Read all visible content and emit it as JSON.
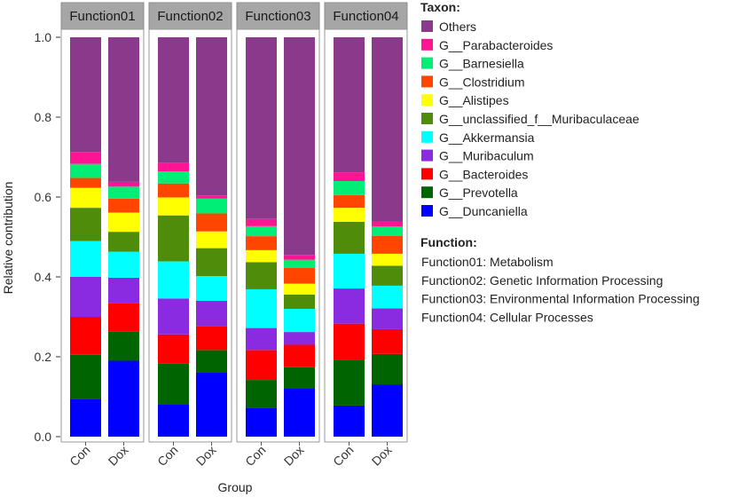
{
  "chart_data": {
    "type": "bar",
    "stacked": true,
    "ylabel": "Relative contribution",
    "xlabel": "Group",
    "ylim": [
      0,
      1
    ],
    "yticks": [
      "0.0",
      "0.2",
      "0.4",
      "0.6",
      "0.8",
      "1.0"
    ],
    "facets": [
      "Function01",
      "Function02",
      "Function03",
      "Function04"
    ],
    "categories": [
      "Con",
      "Dox"
    ],
    "legend_title": "Taxon:",
    "series": [
      {
        "name": "G__Duncaniella",
        "color": "#0000ff",
        "values": {
          "Function01": [
            0.095,
            0.19
          ],
          "Function02": [
            0.08,
            0.16
          ],
          "Function03": [
            0.072,
            0.12
          ],
          "Function04": [
            0.078,
            0.13
          ]
        }
      },
      {
        "name": "G__Prevotella",
        "color": "#006400",
        "values": {
          "Function01": [
            0.11,
            0.073
          ],
          "Function02": [
            0.103,
            0.057
          ],
          "Function03": [
            0.07,
            0.054
          ],
          "Function04": [
            0.115,
            0.077
          ]
        }
      },
      {
        "name": "G__Bacteroides",
        "color": "#ff0000",
        "values": {
          "Function01": [
            0.095,
            0.072
          ],
          "Function02": [
            0.073,
            0.06
          ],
          "Function03": [
            0.075,
            0.056
          ],
          "Function04": [
            0.09,
            0.062
          ]
        }
      },
      {
        "name": "G__Muribaculum",
        "color": "#8a2be2",
        "values": {
          "Function01": [
            0.1,
            0.063
          ],
          "Function02": [
            0.09,
            0.063
          ],
          "Function03": [
            0.055,
            0.032
          ],
          "Function04": [
            0.088,
            0.052
          ]
        }
      },
      {
        "name": "G__Akkermansia",
        "color": "#00ffff",
        "values": {
          "Function01": [
            0.09,
            0.065
          ],
          "Function02": [
            0.093,
            0.062
          ],
          "Function03": [
            0.097,
            0.058
          ],
          "Function04": [
            0.087,
            0.057
          ]
        }
      },
      {
        "name": "G__unclassified_f__Muribaculaceae",
        "color": "#4e8c0a",
        "values": {
          "Function01": [
            0.083,
            0.05
          ],
          "Function02": [
            0.115,
            0.07
          ],
          "Function03": [
            0.068,
            0.036
          ],
          "Function04": [
            0.08,
            0.05
          ]
        }
      },
      {
        "name": "G__Alistipes",
        "color": "#ffff00",
        "values": {
          "Function01": [
            0.05,
            0.048
          ],
          "Function02": [
            0.045,
            0.042
          ],
          "Function03": [
            0.03,
            0.027
          ],
          "Function04": [
            0.035,
            0.03
          ]
        }
      },
      {
        "name": "G__Clostridium",
        "color": "#ff4500",
        "values": {
          "Function01": [
            0.025,
            0.035
          ],
          "Function02": [
            0.035,
            0.045
          ],
          "Function03": [
            0.035,
            0.04
          ],
          "Function04": [
            0.032,
            0.045
          ]
        }
      },
      {
        "name": "G__Barnesiella",
        "color": "#00ee76",
        "values": {
          "Function01": [
            0.035,
            0.03
          ],
          "Function02": [
            0.03,
            0.037
          ],
          "Function03": [
            0.025,
            0.02
          ],
          "Function04": [
            0.035,
            0.023
          ]
        }
      },
      {
        "name": "G__Parabacteroides",
        "color": "#ff1493",
        "values": {
          "Function01": [
            0.03,
            0.012
          ],
          "Function02": [
            0.021,
            0.008
          ],
          "Function03": [
            0.018,
            0.012
          ],
          "Function04": [
            0.022,
            0.014
          ]
        }
      },
      {
        "name": "Others",
        "color": "#8b3a8b",
        "values": {
          "Function01": [
            0.287,
            0.362
          ],
          "Function02": [
            0.315,
            0.396
          ],
          "Function03": [
            0.455,
            0.545
          ],
          "Function04": [
            0.338,
            0.46
          ]
        }
      }
    ],
    "function_legend_title": "Function:",
    "function_legend": [
      "Function01: Metabolism",
      "Function02: Genetic Information Processing",
      "Function03: Environmental Information Processing",
      "Function04: Cellular Processes"
    ],
    "grid": false,
    "legend_position": "right"
  }
}
